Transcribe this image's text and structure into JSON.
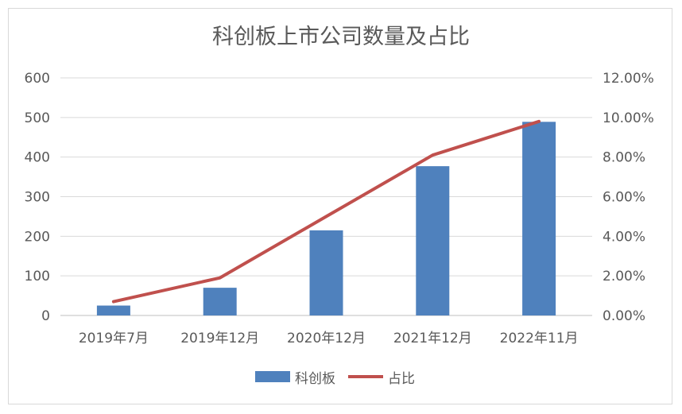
{
  "chart_data": {
    "type": "bar+line",
    "title": "科创板上市公司数量及占比",
    "categories": [
      "2019年7月",
      "2019年12月",
      "2020年12月",
      "2021年12月",
      "2022年11月"
    ],
    "series": [
      {
        "name": "科创板",
        "type": "bar",
        "axis": "left",
        "values": [
          25,
          70,
          215,
          377,
          489
        ],
        "color": "#4f81bd"
      },
      {
        "name": "占比",
        "type": "line",
        "axis": "right",
        "values": [
          0.7,
          1.9,
          5.0,
          8.1,
          9.8
        ],
        "color": "#c0504d"
      }
    ],
    "y_left": {
      "min": 0,
      "max": 600,
      "ticks": [
        "0",
        "100",
        "200",
        "300",
        "400",
        "500",
        "600"
      ]
    },
    "y_right": {
      "min": 0,
      "max": 12,
      "ticks": [
        "0.00%",
        "2.00%",
        "4.00%",
        "6.00%",
        "8.00%",
        "10.00%",
        "12.00%"
      ]
    },
    "grid": true,
    "legend": "bottom"
  }
}
